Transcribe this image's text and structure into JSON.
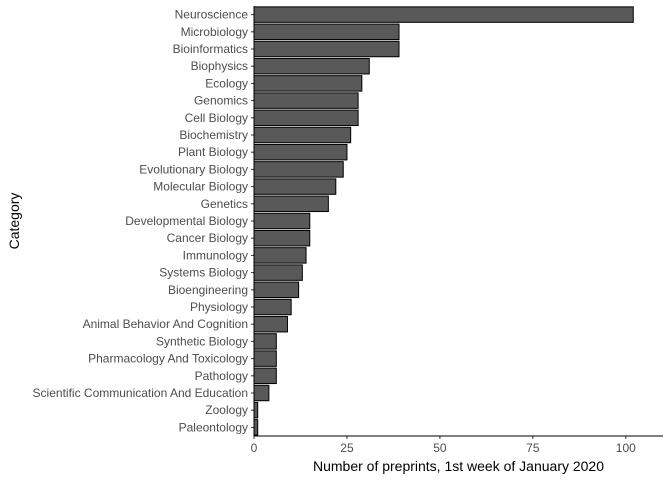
{
  "chart_data": {
    "type": "bar",
    "orientation": "horizontal",
    "categories": [
      "Neuroscience",
      "Microbiology",
      "Bioinformatics",
      "Biophysics",
      "Ecology",
      "Genomics",
      "Cell Biology",
      "Biochemistry",
      "Plant Biology",
      "Evolutionary Biology",
      "Molecular Biology",
      "Genetics",
      "Developmental Biology",
      "Cancer Biology",
      "Immunology",
      "Systems Biology",
      "Bioengineering",
      "Physiology",
      "Animal Behavior And Cognition",
      "Synthetic Biology",
      "Pharmacology And Toxicology",
      "Pathology",
      "Scientific Communication And Education",
      "Zoology",
      "Paleontology"
    ],
    "values": [
      102,
      39,
      39,
      31,
      29,
      28,
      28,
      26,
      25,
      24,
      22,
      20,
      15,
      15,
      14,
      13,
      12,
      10,
      9,
      6,
      6,
      6,
      4,
      1,
      1
    ],
    "xlabel": "Number of preprints, 1st week of January 2020",
    "ylabel": "Category",
    "xlim": [
      0,
      110
    ],
    "xticks": [
      0,
      25,
      50,
      75,
      100
    ],
    "grid": false,
    "colors": {
      "bar_fill": "#595959",
      "bar_stroke": "#000000"
    }
  }
}
